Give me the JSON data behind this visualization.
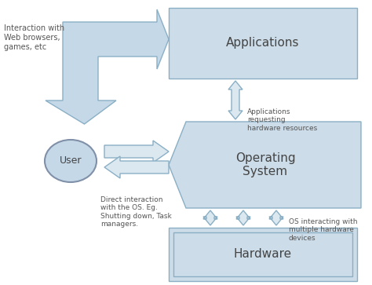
{
  "bg_color": "#ffffff",
  "box_fill": "#ccdce8",
  "box_edge": "#8aafc5",
  "arrow_fill": "#c5d8e8",
  "arrow_edge": "#8aafc5",
  "user_fill": "#c5d8e8",
  "user_edge": "#8090a8",
  "small_arrow_fill": "#dce8f0",
  "small_arrow_edge": "#8aafc5",
  "text_color": "#444444",
  "label_color": "#555555",
  "applications_label": "Applications",
  "os_label": "Operating\nSystem",
  "hardware_label": "Hardware",
  "user_label": "User",
  "annotation1": "Interaction with\nWeb browsers,\ngames, etc",
  "annotation2": "Applications\nrequesting\nhardware resources",
  "annotation3": "Direct interaction\nwith the OS. Eg.\nShutting down, Task\nmanagers.",
  "annotation4": "OS interacting with\nmultiple hardware\ndevices"
}
